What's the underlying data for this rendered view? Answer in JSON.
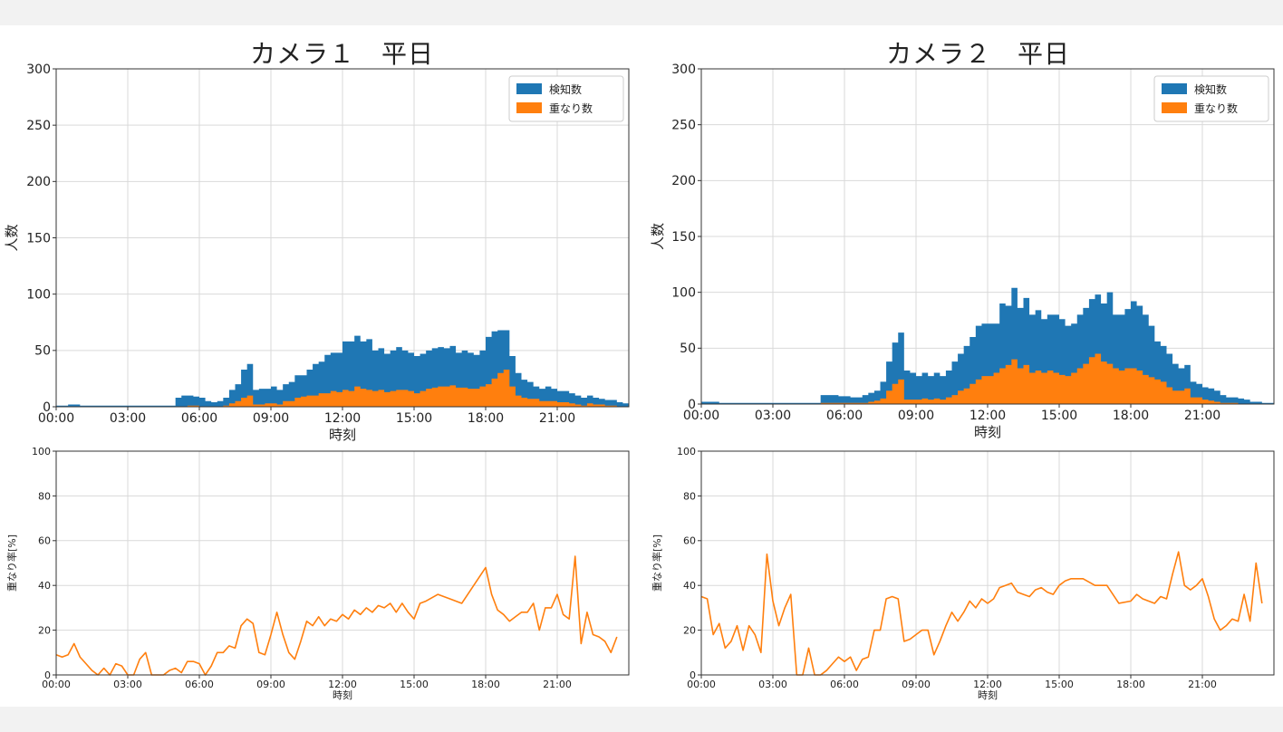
{
  "chart_data": [
    {
      "type": "bar",
      "title": "カメラ１　平日",
      "xlabel": "時刻",
      "ylabel": "人数",
      "ylim": [
        0,
        300
      ],
      "xlim": [
        0,
        24
      ],
      "xticks": [
        "00:00",
        "03:00",
        "06:00",
        "09:00",
        "12:00",
        "15:00",
        "18:00",
        "21:00"
      ],
      "yticks": [
        "0",
        "50",
        "100",
        "150",
        "200",
        "250",
        "300"
      ],
      "grid": true,
      "legend_position": "top-right",
      "stacked": false,
      "bin_hours": 0.25,
      "series": [
        {
          "name": "検知数",
          "color": "#1f77b4",
          "values": [
            1,
            1,
            2,
            2,
            1,
            1,
            1,
            1,
            1,
            1,
            1,
            1,
            1,
            1,
            1,
            1,
            1,
            1,
            1,
            1,
            8,
            10,
            10,
            9,
            8,
            5,
            4,
            5,
            8,
            15,
            20,
            33,
            38,
            15,
            16,
            16,
            18,
            15,
            20,
            22,
            28,
            28,
            33,
            38,
            40,
            46,
            48,
            48,
            58,
            58,
            63,
            58,
            60,
            50,
            52,
            47,
            50,
            53,
            50,
            48,
            45,
            47,
            50,
            52,
            53,
            52,
            54,
            48,
            50,
            48,
            46,
            50,
            62,
            67,
            68,
            68,
            45,
            30,
            24,
            22,
            18,
            16,
            18,
            16,
            14,
            14,
            12,
            10,
            8,
            10,
            8,
            7,
            6,
            6,
            4,
            3
          ]
        },
        {
          "name": "重なり数",
          "color": "#ff7f0e",
          "values": [
            0,
            0,
            0,
            0,
            0,
            0,
            0,
            0,
            0,
            0,
            0,
            0,
            0,
            0,
            0,
            0,
            0,
            0,
            0,
            0,
            0,
            0,
            1,
            1,
            0,
            0,
            0,
            0,
            1,
            3,
            5,
            8,
            10,
            2,
            2,
            3,
            3,
            2,
            5,
            5,
            8,
            9,
            10,
            10,
            12,
            12,
            14,
            13,
            15,
            14,
            18,
            16,
            15,
            14,
            15,
            13,
            14,
            15,
            15,
            14,
            12,
            14,
            16,
            17,
            18,
            18,
            19,
            17,
            17,
            16,
            16,
            18,
            20,
            25,
            30,
            33,
            18,
            10,
            8,
            7,
            7,
            5,
            5,
            5,
            4,
            4,
            3,
            2,
            1,
            3,
            2,
            2,
            1,
            1,
            0,
            0
          ]
        }
      ]
    },
    {
      "type": "line",
      "xlabel": "時刻",
      "ylabel": "重なり率[%]",
      "ylim": [
        0,
        100
      ],
      "xlim": [
        0,
        24
      ],
      "xticks": [
        "00:00",
        "03:00",
        "06:00",
        "09:00",
        "12:00",
        "15:00",
        "18:00",
        "21:00"
      ],
      "yticks": [
        "0",
        "20",
        "40",
        "60",
        "80",
        "100"
      ],
      "grid": true,
      "series": [
        {
          "name": "",
          "color": "#ff7f0e",
          "x": [
            0,
            0.25,
            0.5,
            0.75,
            1,
            1.25,
            1.5,
            1.75,
            2,
            2.25,
            2.5,
            2.75,
            3,
            3.25,
            3.5,
            3.75,
            4,
            4.25,
            4.5,
            4.75,
            5,
            5.25,
            5.5,
            5.75,
            6,
            6.25,
            6.5,
            6.75,
            7,
            7.25,
            7.5,
            7.75,
            8,
            8.25,
            8.5,
            8.75,
            9,
            9.25,
            9.5,
            9.75,
            10,
            10.25,
            10.5,
            10.75,
            11,
            11.25,
            11.5,
            11.75,
            12,
            12.25,
            12.5,
            12.75,
            13,
            13.25,
            13.5,
            13.75,
            14,
            14.25,
            14.5,
            14.75,
            15,
            15.25,
            15.5,
            16,
            16.5,
            17,
            17.5,
            18,
            18.25,
            18.5,
            18.75,
            19,
            19.25,
            19.5,
            19.75,
            20,
            20.25,
            20.5,
            20.75,
            21,
            21.25,
            21.5,
            21.75,
            22,
            22.25,
            22.5,
            22.75,
            23,
            23.25,
            23.5
          ],
          "y": [
            9,
            8,
            9,
            14,
            8,
            5,
            2,
            0,
            3,
            0,
            5,
            4,
            0,
            0,
            7,
            10,
            0,
            0,
            0,
            2,
            3,
            1,
            6,
            6,
            5,
            0,
            4,
            10,
            10,
            13,
            12,
            22,
            25,
            23,
            10,
            9,
            18,
            28,
            18,
            10,
            7,
            15,
            24,
            22,
            26,
            22,
            25,
            24,
            27,
            25,
            29,
            27,
            30,
            28,
            31,
            30,
            32,
            28,
            32,
            28,
            25,
            32,
            33,
            36,
            34,
            32,
            40,
            48,
            36,
            29,
            27,
            24,
            26,
            28,
            28,
            32,
            20,
            30,
            30,
            36,
            27,
            25,
            53,
            14,
            28,
            18,
            17,
            15,
            10,
            17
          ]
        }
      ]
    },
    {
      "type": "bar",
      "title": "カメラ２　平日",
      "xlabel": "時刻",
      "ylabel": "人数",
      "ylim": [
        0,
        300
      ],
      "xlim": [
        0,
        24
      ],
      "xticks": [
        "00:00",
        "03:00",
        "06:00",
        "09:00",
        "12:00",
        "15:00",
        "18:00",
        "21:00"
      ],
      "yticks": [
        "0",
        "50",
        "100",
        "150",
        "200",
        "250",
        "300"
      ],
      "grid": true,
      "legend_position": "top-right",
      "stacked": false,
      "bin_hours": 0.25,
      "series": [
        {
          "name": "検知数",
          "color": "#1f77b4",
          "values": [
            2,
            2,
            2,
            1,
            1,
            1,
            1,
            1,
            1,
            1,
            1,
            1,
            1,
            1,
            1,
            1,
            1,
            1,
            1,
            1,
            8,
            8,
            8,
            7,
            7,
            6,
            6,
            8,
            10,
            12,
            20,
            38,
            55,
            64,
            30,
            28,
            25,
            28,
            25,
            28,
            25,
            30,
            38,
            45,
            52,
            60,
            70,
            72,
            72,
            72,
            90,
            88,
            104,
            86,
            95,
            80,
            84,
            76,
            80,
            80,
            76,
            70,
            72,
            80,
            86,
            94,
            98,
            90,
            100,
            80,
            80,
            85,
            92,
            88,
            80,
            70,
            56,
            52,
            45,
            36,
            32,
            35,
            20,
            18,
            15,
            14,
            12,
            8,
            6,
            6,
            5,
            4,
            2,
            2,
            1,
            1
          ]
        },
        {
          "name": "重なり数",
          "color": "#ff7f0e",
          "values": [
            0,
            0,
            0,
            0,
            0,
            0,
            0,
            0,
            0,
            0,
            0,
            0,
            0,
            0,
            0,
            0,
            0,
            0,
            0,
            0,
            1,
            1,
            1,
            1,
            1,
            1,
            1,
            1,
            2,
            3,
            5,
            12,
            18,
            22,
            4,
            4,
            4,
            5,
            4,
            5,
            4,
            6,
            8,
            12,
            14,
            18,
            22,
            25,
            25,
            28,
            32,
            35,
            40,
            32,
            35,
            28,
            30,
            28,
            30,
            28,
            26,
            25,
            28,
            32,
            36,
            42,
            45,
            38,
            36,
            32,
            30,
            32,
            32,
            30,
            26,
            24,
            22,
            20,
            15,
            12,
            12,
            14,
            6,
            6,
            4,
            3,
            2,
            1,
            1,
            1,
            0,
            0,
            0,
            0,
            0,
            0
          ]
        }
      ]
    },
    {
      "type": "line",
      "xlabel": "時刻",
      "ylabel": "重なり率[%]",
      "ylim": [
        0,
        100
      ],
      "xlim": [
        0,
        24
      ],
      "xticks": [
        "00:00",
        "03:00",
        "06:00",
        "09:00",
        "12:00",
        "15:00",
        "18:00",
        "21:00"
      ],
      "yticks": [
        "0",
        "20",
        "40",
        "60",
        "80",
        "100"
      ],
      "grid": true,
      "series": [
        {
          "name": "",
          "color": "#ff7f0e",
          "x": [
            0,
            0.25,
            0.5,
            0.75,
            1,
            1.25,
            1.5,
            1.75,
            2,
            2.25,
            2.5,
            2.75,
            3,
            3.25,
            3.5,
            3.75,
            4,
            4.25,
            4.5,
            4.75,
            5,
            5.25,
            5.5,
            5.75,
            6,
            6.25,
            6.5,
            6.75,
            7,
            7.25,
            7.5,
            7.75,
            8,
            8.25,
            8.5,
            8.75,
            9,
            9.25,
            9.5,
            9.75,
            10,
            10.25,
            10.5,
            10.75,
            11,
            11.25,
            11.5,
            11.75,
            12,
            12.25,
            12.5,
            12.75,
            13,
            13.25,
            13.5,
            13.75,
            14,
            14.25,
            14.5,
            14.75,
            15,
            15.25,
            15.5,
            16,
            16.5,
            17,
            17.5,
            18,
            18.25,
            18.5,
            18.75,
            19,
            19.25,
            19.5,
            19.75,
            20,
            20.25,
            20.5,
            20.75,
            21,
            21.25,
            21.5,
            21.75,
            22,
            22.25,
            22.5,
            22.75,
            23,
            23.25,
            23.5
          ],
          "y": [
            35,
            34,
            18,
            23,
            12,
            15,
            22,
            11,
            22,
            18,
            10,
            54,
            33,
            22,
            30,
            36,
            0,
            0,
            12,
            0,
            0,
            2,
            5,
            8,
            6,
            8,
            2,
            7,
            8,
            20,
            20,
            34,
            35,
            34,
            15,
            16,
            18,
            20,
            20,
            9,
            15,
            22,
            28,
            24,
            28,
            33,
            30,
            34,
            32,
            34,
            39,
            40,
            41,
            37,
            36,
            35,
            38,
            39,
            37,
            36,
            40,
            42,
            43,
            43,
            40,
            40,
            32,
            33,
            36,
            34,
            33,
            32,
            35,
            34,
            45,
            55,
            40,
            38,
            40,
            43,
            35,
            25,
            20,
            22,
            25,
            24,
            36,
            24,
            50,
            32
          ]
        }
      ]
    }
  ]
}
